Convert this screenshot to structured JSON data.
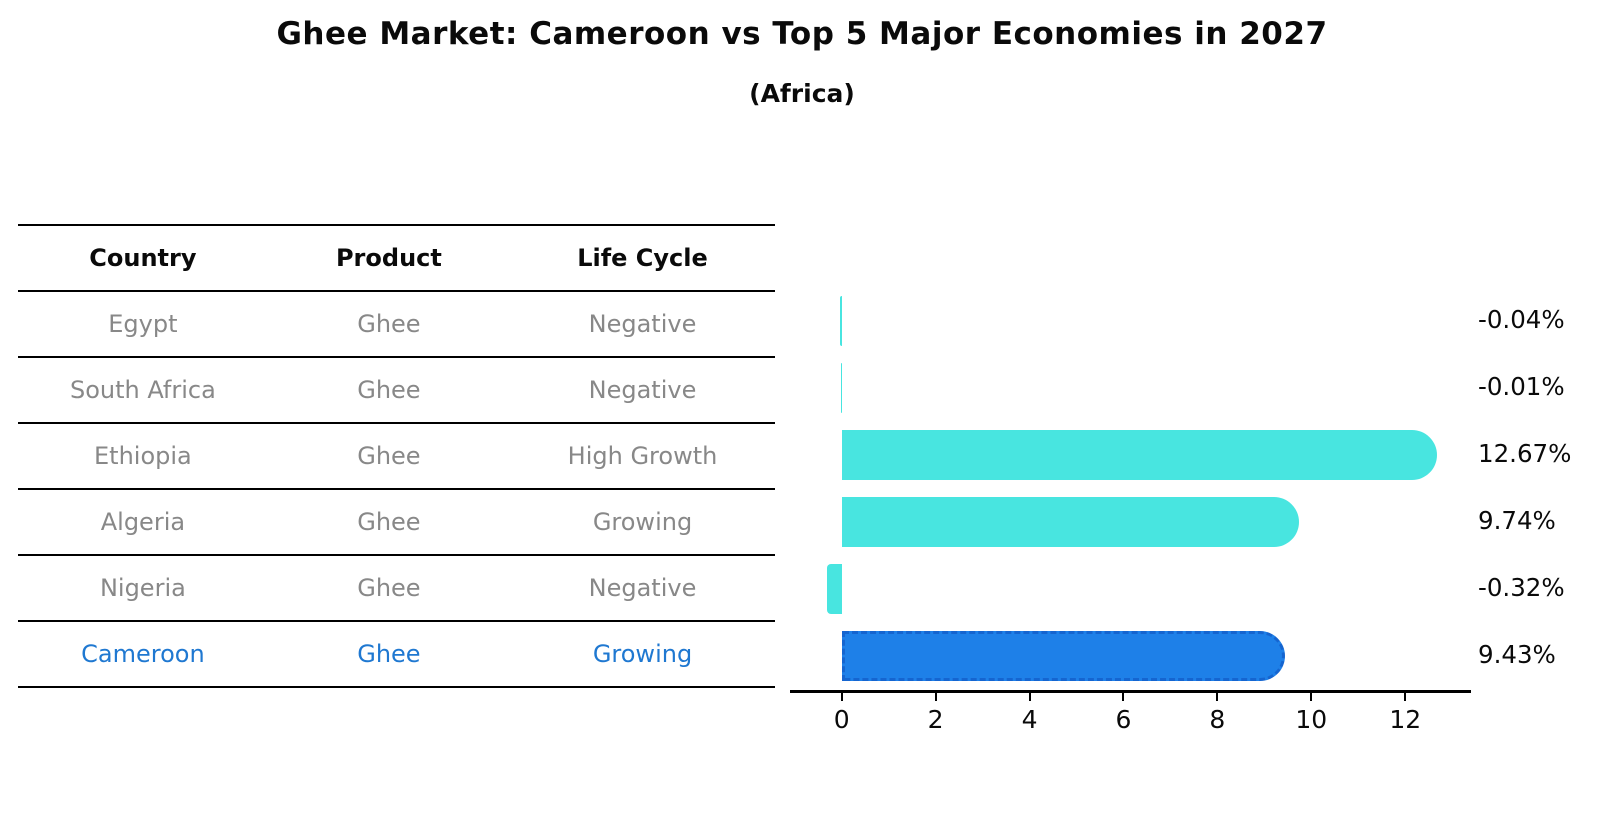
{
  "title": "Ghee Market: Cameroon vs Top 5 Major Economies in 2027",
  "subtitle": "(Africa)",
  "table": {
    "headers": [
      "Country",
      "Product",
      "Life Cycle"
    ],
    "rows": [
      {
        "country": "Egypt",
        "product": "Ghee",
        "life_cycle": "Negative",
        "highlight": false
      },
      {
        "country": "South Africa",
        "product": "Ghee",
        "life_cycle": "Negative",
        "highlight": false
      },
      {
        "country": "Ethiopia",
        "product": "Ghee",
        "life_cycle": "High Growth",
        "highlight": false
      },
      {
        "country": "Algeria",
        "product": "Ghee",
        "life_cycle": "Growing",
        "highlight": false
      },
      {
        "country": "Nigeria",
        "product": "Ghee",
        "life_cycle": "Negative",
        "highlight": false
      },
      {
        "country": "Cameroon",
        "product": "Ghee",
        "life_cycle": "Growing",
        "highlight": true
      }
    ]
  },
  "chart_data": {
    "type": "bar",
    "orientation": "horizontal",
    "title": "",
    "xlabel": "",
    "ylabel": "",
    "categories": [
      "Egypt",
      "South Africa",
      "Ethiopia",
      "Algeria",
      "Nigeria",
      "Cameroon"
    ],
    "values": [
      -0.04,
      -0.01,
      12.67,
      9.74,
      -0.32,
      9.43
    ],
    "value_labels": [
      "-0.04%",
      "-0.01%",
      "12.67%",
      "9.74%",
      "-0.32%",
      "9.43%"
    ],
    "units": "%",
    "xticks": [
      0,
      2,
      4,
      6,
      8,
      10,
      12
    ],
    "xlim": [
      -1.1,
      13.4
    ],
    "grid": false,
    "legend": "none",
    "bar_color": "#48E5E0",
    "highlight_index": 5,
    "highlight_bar_color": "#1E80E8",
    "highlight_border_color": "#1565D0"
  },
  "colors": {
    "highlight_text": "#1F78D1",
    "row_text": "#888888",
    "header_text": "#0A0A0A",
    "axis": "#000000"
  }
}
